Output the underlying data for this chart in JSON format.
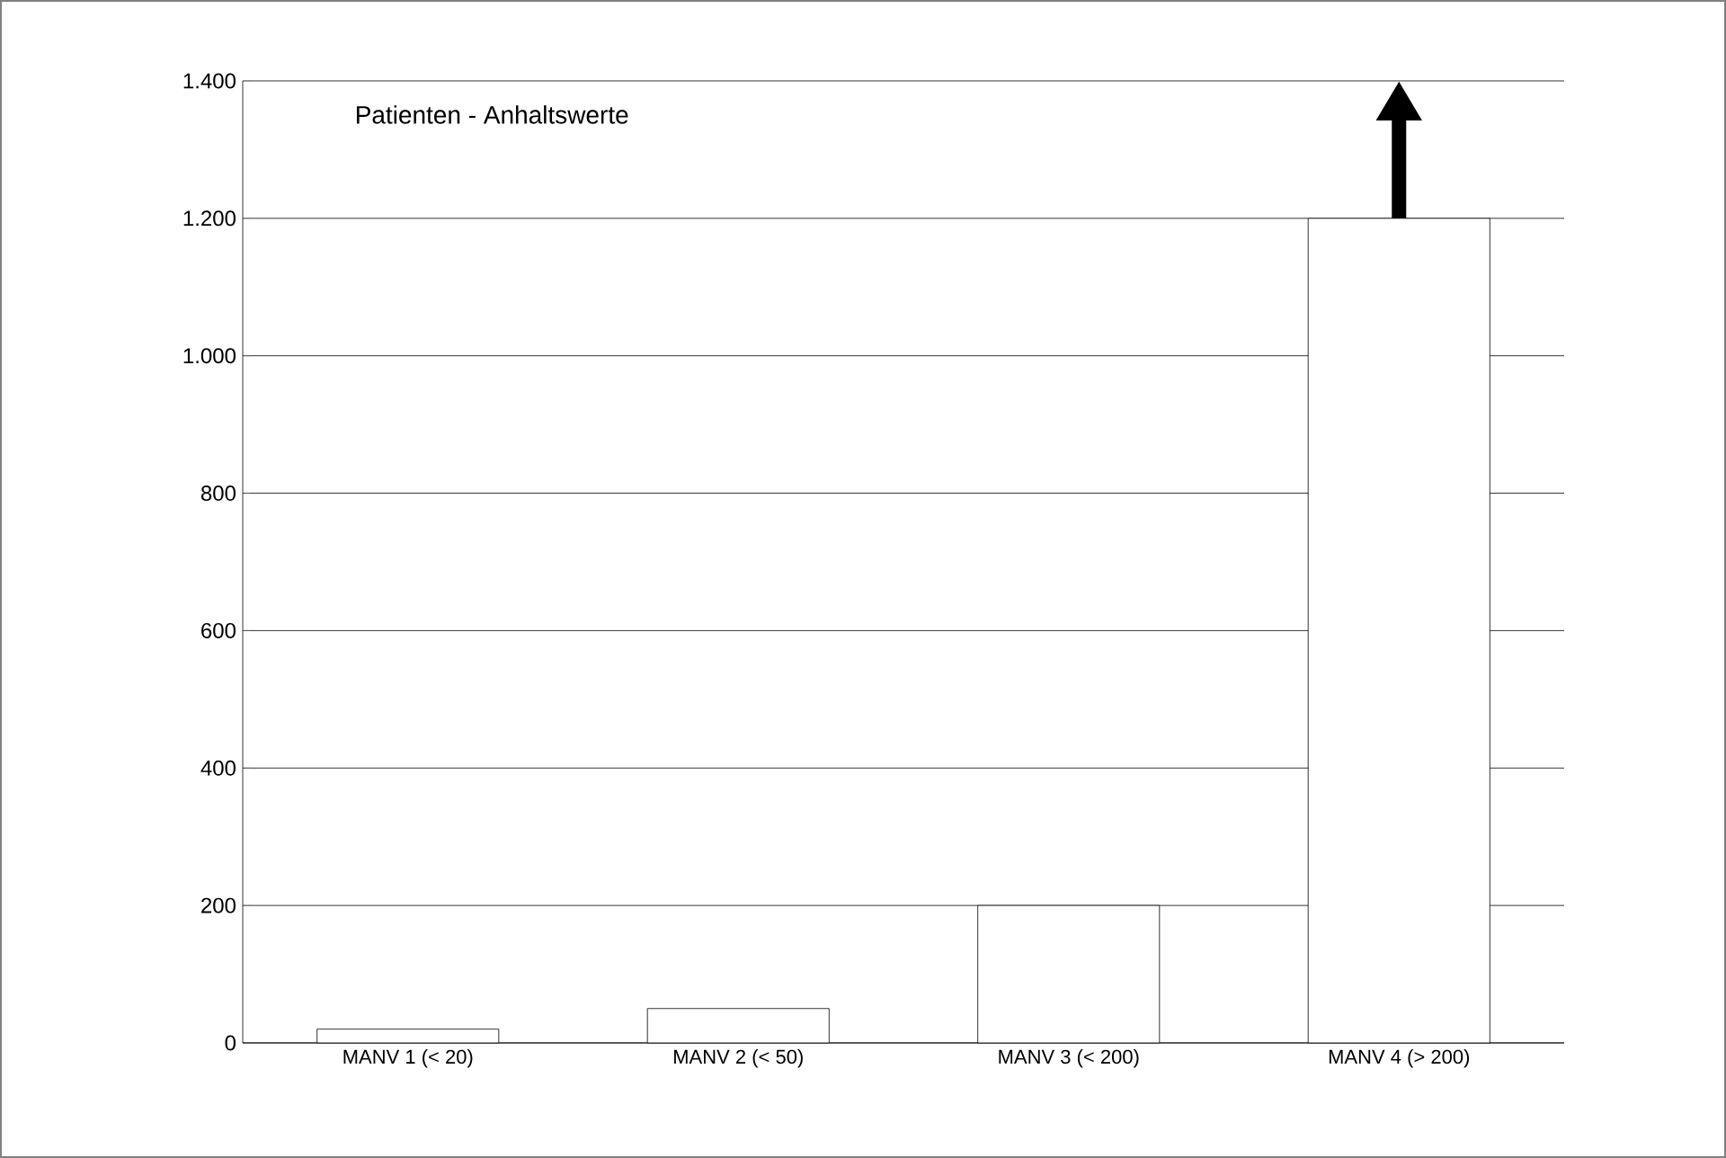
{
  "chart_data": {
    "type": "bar",
    "title": "Patienten - Anhaltswerte",
    "categories": [
      "MANV 1 (< 20)",
      "MANV 2 (< 50)",
      "MANV 3 (< 200)",
      "MANV 4 (> 200)"
    ],
    "values": [
      20,
      50,
      200,
      1200
    ],
    "color": "#ffffff",
    "ylim": [
      0,
      1400
    ],
    "yticks": [
      0,
      200,
      400,
      600,
      800,
      {
        "value": 1000,
        "label": "1.000"
      },
      {
        "value": 1200,
        "label": "1.200"
      },
      {
        "value": 1400,
        "label": "1.400"
      }
    ],
    "grid": "y"
  }
}
